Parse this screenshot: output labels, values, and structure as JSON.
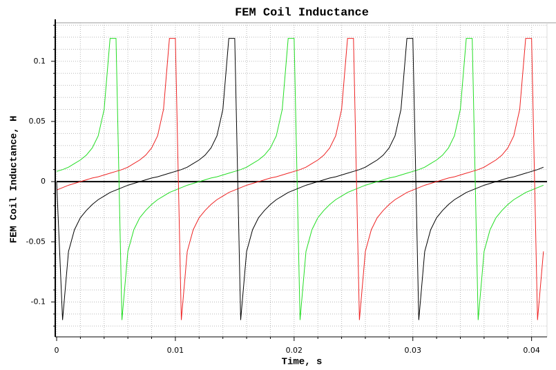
{
  "chart_data": {
    "type": "line",
    "title": "FEM Coil Inductance",
    "xlabel": "Time, s",
    "ylabel": "FEM Coil Inductance, H",
    "x": [
      0,
      0.0005,
      0.001,
      0.0015,
      0.002,
      0.0025,
      0.003,
      0.0035,
      0.004,
      0.0045,
      0.005,
      0.0055,
      0.006,
      0.0065,
      0.007,
      0.0075,
      0.008,
      0.0085,
      0.009,
      0.0095,
      0.01,
      0.0105,
      0.011,
      0.0115,
      0.012,
      0.0125,
      0.013,
      0.0135,
      0.014,
      0.0145,
      0.015,
      0.0155,
      0.016,
      0.0165,
      0.017,
      0.0175,
      0.018,
      0.0185,
      0.019,
      0.0195,
      0.02,
      0.0205,
      0.021,
      0.0215,
      0.022,
      0.0225,
      0.023,
      0.0235,
      0.024,
      0.0245,
      0.025,
      0.0255,
      0.026,
      0.0265,
      0.027,
      0.0275,
      0.028,
      0.0285,
      0.029,
      0.0295,
      0.03,
      0.0305,
      0.031,
      0.0315,
      0.032,
      0.0325,
      0.033,
      0.0335,
      0.034,
      0.0345,
      0.035,
      0.0355,
      0.036,
      0.0365,
      0.037,
      0.0375,
      0.038,
      0.0385,
      0.039,
      0.0395,
      0.04,
      0.0405,
      0.041
    ],
    "series": [
      {
        "color": "#22dd22",
        "values": [
          0.0085,
          0.01,
          0.012,
          0.015,
          0.018,
          0.022,
          0.028,
          0.038,
          0.06,
          0.119,
          0.119,
          -0.115,
          -0.058,
          -0.04,
          -0.03,
          -0.024,
          -0.019,
          -0.015,
          -0.012,
          -0.009,
          -0.007,
          -0.005,
          -0.003,
          -0.0015,
          0,
          0.0015,
          0.003,
          0.004,
          0.0055,
          0.007,
          0.0085,
          0.01,
          0.012,
          0.015,
          0.018,
          0.022,
          0.028,
          0.038,
          0.06,
          0.119,
          0.119,
          -0.115,
          -0.058,
          -0.04,
          -0.03,
          -0.024,
          -0.019,
          -0.015,
          -0.012,
          -0.009,
          -0.007,
          -0.005,
          -0.003,
          -0.0015,
          0,
          0.0015,
          0.003,
          0.004,
          0.0055,
          0.007,
          0.0085,
          0.01,
          0.012,
          0.015,
          0.018,
          0.022,
          0.028,
          0.038,
          0.06,
          0.119,
          0.119,
          -0.115,
          -0.058,
          -0.04,
          -0.03,
          -0.024,
          -0.019,
          -0.015,
          -0.012,
          -0.009,
          -0.007,
          -0.005,
          -0.003
        ]
      },
      {
        "color": "#ee2222",
        "values": [
          -0.007,
          -0.005,
          -0.003,
          -0.0015,
          0,
          0.0015,
          0.003,
          0.004,
          0.0055,
          0.007,
          0.0085,
          0.01,
          0.012,
          0.015,
          0.018,
          0.022,
          0.028,
          0.038,
          0.06,
          0.119,
          0.119,
          -0.115,
          -0.058,
          -0.04,
          -0.03,
          -0.024,
          -0.019,
          -0.015,
          -0.012,
          -0.009,
          -0.007,
          -0.005,
          -0.003,
          -0.0015,
          0,
          0.0015,
          0.003,
          0.004,
          0.0055,
          0.007,
          0.0085,
          0.01,
          0.012,
          0.015,
          0.018,
          0.022,
          0.028,
          0.038,
          0.06,
          0.119,
          0.119,
          -0.115,
          -0.058,
          -0.04,
          -0.03,
          -0.024,
          -0.019,
          -0.015,
          -0.012,
          -0.009,
          -0.007,
          -0.005,
          -0.003,
          -0.0015,
          0,
          0.0015,
          0.003,
          0.004,
          0.0055,
          0.007,
          0.0085,
          0.01,
          0.012,
          0.015,
          0.018,
          0.022,
          0.028,
          0.038,
          0.06,
          0.119,
          0.119,
          -0.115,
          -0.058
        ]
      },
      {
        "color": "#000000",
        "values": [
          0,
          -0.115,
          -0.058,
          -0.04,
          -0.03,
          -0.024,
          -0.019,
          -0.015,
          -0.012,
          -0.009,
          -0.007,
          -0.005,
          -0.003,
          -0.0015,
          0,
          0.0015,
          0.003,
          0.004,
          0.0055,
          0.007,
          0.0085,
          0.01,
          0.012,
          0.015,
          0.018,
          0.022,
          0.028,
          0.038,
          0.06,
          0.119,
          0.119,
          -0.115,
          -0.058,
          -0.04,
          -0.03,
          -0.024,
          -0.019,
          -0.015,
          -0.012,
          -0.009,
          -0.007,
          -0.005,
          -0.003,
          -0.0015,
          0,
          0.0015,
          0.003,
          0.004,
          0.0055,
          0.007,
          0.0085,
          0.01,
          0.012,
          0.015,
          0.018,
          0.022,
          0.028,
          0.038,
          0.06,
          0.119,
          0.119,
          -0.115,
          -0.058,
          -0.04,
          -0.03,
          -0.024,
          -0.019,
          -0.015,
          -0.012,
          -0.009,
          -0.007,
          -0.005,
          -0.003,
          -0.0015,
          0,
          0.0015,
          0.003,
          0.004,
          0.0055,
          0.007,
          0.0085,
          0.01,
          0.012
        ]
      }
    ],
    "xlim": [
      0,
      0.0413
    ],
    "ylim": [
      -0.129,
      0.132
    ],
    "xticks": [
      0,
      0.01,
      0.02,
      0.03,
      0.04
    ],
    "yticks": [
      -0.1,
      -0.05,
      0,
      0.05,
      0.1
    ],
    "xminorticks": [
      0.002,
      0.004,
      0.006,
      0.008,
      0.012,
      0.014,
      0.016,
      0.018,
      0.022,
      0.024,
      0.026,
      0.028,
      0.032,
      0.034,
      0.036,
      0.038
    ],
    "yminorticks": [
      -0.12,
      -0.11,
      -0.09,
      -0.08,
      -0.07,
      -0.06,
      -0.04,
      -0.03,
      -0.02,
      -0.01,
      0.01,
      0.02,
      0.03,
      0.04,
      0.06,
      0.07,
      0.08,
      0.09,
      0.11,
      0.12,
      0.13
    ],
    "grid": true,
    "zero_line": true
  }
}
